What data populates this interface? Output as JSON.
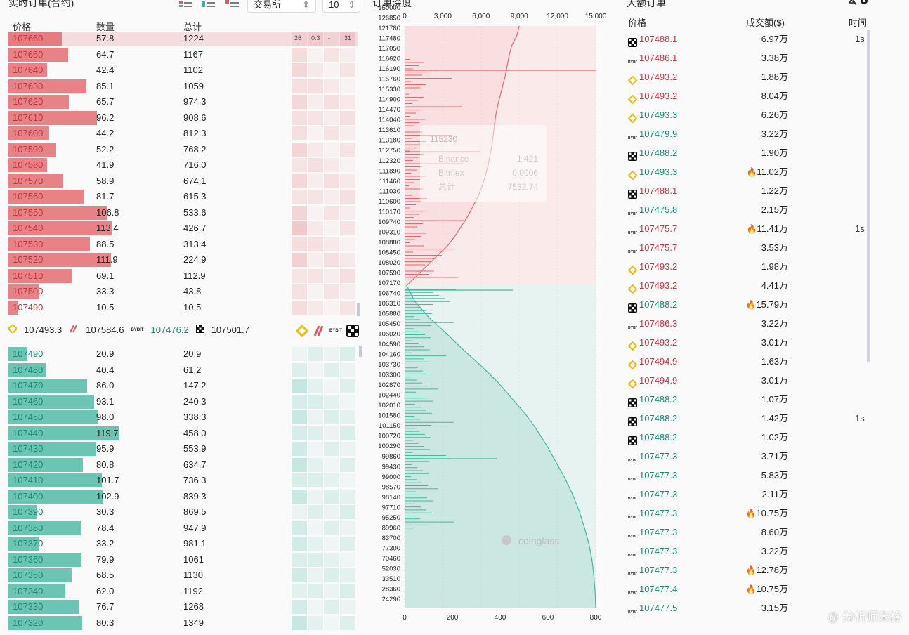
{
  "orderbook": {
    "title": "实时订单(合约)",
    "exchange_select": "交易所",
    "depth_select": "10",
    "headers": {
      "price": "价格",
      "qty": "数量",
      "total": "总计"
    },
    "heat_labels": [
      "26",
      "0.3",
      "-",
      "31"
    ],
    "asks": [
      {
        "price": "107660",
        "qty": "57.8",
        "total": "1224"
      },
      {
        "price": "107650",
        "qty": "64.7",
        "total": "1167"
      },
      {
        "price": "107640",
        "qty": "42.4",
        "total": "1102"
      },
      {
        "price": "107630",
        "qty": "85.1",
        "total": "1059"
      },
      {
        "price": "107620",
        "qty": "65.7",
        "total": "974.3"
      },
      {
        "price": "107610",
        "qty": "96.2",
        "total": "908.6"
      },
      {
        "price": "107600",
        "qty": "44.2",
        "total": "812.3"
      },
      {
        "price": "107590",
        "qty": "52.2",
        "total": "768.2"
      },
      {
        "price": "107580",
        "qty": "41.9",
        "total": "716.0"
      },
      {
        "price": "107570",
        "qty": "58.9",
        "total": "674.1"
      },
      {
        "price": "107560",
        "qty": "81.7",
        "total": "615.3"
      },
      {
        "price": "107550",
        "qty": "106.8",
        "total": "533.6"
      },
      {
        "price": "107540",
        "qty": "113.4",
        "total": "426.7"
      },
      {
        "price": "107530",
        "qty": "88.5",
        "total": "313.4"
      },
      {
        "price": "107520",
        "qty": "111.9",
        "total": "224.9"
      },
      {
        "price": "107510",
        "qty": "69.1",
        "total": "112.9"
      },
      {
        "price": "107500",
        "qty": "33.3",
        "total": "43.8"
      },
      {
        "price": "107490",
        "qty": "10.5",
        "total": "10.5"
      }
    ],
    "bids": [
      {
        "price": "107490",
        "qty": "20.9",
        "total": "20.9"
      },
      {
        "price": "107480",
        "qty": "40.4",
        "total": "61.2"
      },
      {
        "price": "107470",
        "qty": "86.0",
        "total": "147.2"
      },
      {
        "price": "107460",
        "qty": "93.1",
        "total": "240.3"
      },
      {
        "price": "107450",
        "qty": "98.0",
        "total": "338.3"
      },
      {
        "price": "107440",
        "qty": "119.7",
        "total": "458.0"
      },
      {
        "price": "107430",
        "qty": "95.9",
        "total": "553.9"
      },
      {
        "price": "107420",
        "qty": "80.8",
        "total": "634.7"
      },
      {
        "price": "107410",
        "qty": "101.7",
        "total": "736.3"
      },
      {
        "price": "107400",
        "qty": "102.9",
        "total": "839.3"
      },
      {
        "price": "107390",
        "qty": "30.3",
        "total": "869.5"
      },
      {
        "price": "107380",
        "qty": "78.4",
        "total": "947.9"
      },
      {
        "price": "107370",
        "qty": "33.2",
        "total": "981.1"
      },
      {
        "price": "107360",
        "qty": "79.9",
        "total": "1061"
      },
      {
        "price": "107350",
        "qty": "68.5",
        "total": "1130"
      },
      {
        "price": "107340",
        "qty": "62.0",
        "total": "1192"
      },
      {
        "price": "107330",
        "qty": "76.7",
        "total": "1268"
      },
      {
        "price": "107320",
        "qty": "80.3",
        "total": "1349"
      }
    ],
    "exchange_prices": [
      {
        "icon": "binance-icon",
        "value": "107493.3"
      },
      {
        "icon": "bitmex-icon",
        "value": "107584.6"
      },
      {
        "icon": "bybit-icon",
        "value": "107476.2"
      },
      {
        "icon": "okx-icon",
        "value": "107501.7"
      }
    ],
    "colors": {
      "ask": "#e05a60",
      "bid": "#3bb39a"
    }
  },
  "chart_data": {
    "type": "area",
    "title": "订单深度",
    "top_axis": {
      "ticks": [
        "0",
        "3,000",
        "6,000",
        "9,000",
        "12,000",
        "15,000"
      ],
      "range": [
        0,
        15000
      ]
    },
    "bottom_axis": {
      "ticks": [
        "0",
        "200",
        "400",
        "600",
        "800"
      ],
      "range": [
        0,
        800
      ]
    },
    "price_ticks": [
      "150000",
      "126850",
      "121780",
      "117480",
      "117050",
      "116620",
      "116190",
      "115760",
      "115330",
      "114900",
      "114470",
      "114040",
      "113610",
      "113180",
      "112750",
      "112320",
      "111890",
      "111460",
      "111030",
      "110600",
      "110170",
      "109740",
      "109310",
      "108880",
      "108450",
      "108020",
      "107590",
      "107170",
      "106740",
      "106310",
      "105880",
      "105450",
      "105020",
      "104590",
      "104160",
      "103730",
      "103300",
      "102870",
      "102440",
      "102010",
      "101580",
      "101150",
      "100720",
      "100290",
      "99860",
      "99430",
      "99000",
      "98570",
      "98140",
      "97710",
      "95250",
      "89960",
      "83700",
      "77300",
      "70460",
      "52030",
      "33510",
      "28360",
      "24290"
    ],
    "tooltip": {
      "price": "115230",
      "rows": [
        {
          "name": "Binance",
          "value": "1.421"
        },
        {
          "name": "Bitmex",
          "value": "0.0006"
        },
        {
          "name": "总计",
          "value": "7532.74"
        }
      ]
    },
    "ask_cumulative": [
      200,
      1000,
      1800,
      2600,
      3400,
      4000,
      4500,
      5000,
      5400,
      5800,
      6100,
      6350,
      6550,
      6700,
      6850,
      6950,
      7050,
      7150,
      7300,
      7500,
      7700,
      7900,
      8050,
      8200,
      8400,
      8800,
      9000
    ],
    "bid_cumulative": [
      150,
      800,
      1900,
      3300,
      4600,
      6000,
      7300,
      8400,
      9500,
      10400,
      11200,
      11900,
      12600,
      13200,
      13700,
      14100,
      14450,
      14700,
      14850,
      14950,
      15000
    ],
    "watermark": "coinglass",
    "colors": {
      "ask": "#e9646c",
      "bid": "#48b59e"
    }
  },
  "large_orders": {
    "title": "大额订单",
    "headers": {
      "price": "价格",
      "amount": "成交额($)",
      "time": "时间"
    },
    "rows": [
      {
        "ex": "okx",
        "price": "107488.1",
        "side": "dn",
        "amount": "6.97万",
        "hot": false,
        "time": "1s"
      },
      {
        "ex": "bybit",
        "price": "107486.1",
        "side": "dn",
        "amount": "3.38万",
        "hot": false,
        "time": ""
      },
      {
        "ex": "binance",
        "price": "107493.2",
        "side": "dn",
        "amount": "1.88万",
        "hot": false,
        "time": ""
      },
      {
        "ex": "binance",
        "price": "107493.2",
        "side": "dn",
        "amount": "8.04万",
        "hot": false,
        "time": ""
      },
      {
        "ex": "binance",
        "price": "107493.3",
        "side": "up",
        "amount": "6.26万",
        "hot": false,
        "time": ""
      },
      {
        "ex": "bybit",
        "price": "107479.9",
        "side": "up",
        "amount": "3.22万",
        "hot": false,
        "time": ""
      },
      {
        "ex": "okx",
        "price": "107488.2",
        "side": "up",
        "amount": "1.90万",
        "hot": false,
        "time": ""
      },
      {
        "ex": "binance",
        "price": "107493.3",
        "side": "up",
        "amount": "11.02万",
        "hot": true,
        "time": ""
      },
      {
        "ex": "okx",
        "price": "107488.1",
        "side": "dn",
        "amount": "1.22万",
        "hot": false,
        "time": ""
      },
      {
        "ex": "bybit",
        "price": "107475.8",
        "side": "up",
        "amount": "2.15万",
        "hot": false,
        "time": ""
      },
      {
        "ex": "bybit",
        "price": "107475.7",
        "side": "dn",
        "amount": "11.41万",
        "hot": true,
        "time": "1s"
      },
      {
        "ex": "bybit",
        "price": "107475.7",
        "side": "dn",
        "amount": "3.53万",
        "hot": false,
        "time": ""
      },
      {
        "ex": "binance",
        "price": "107493.2",
        "side": "dn",
        "amount": "1.98万",
        "hot": false,
        "time": ""
      },
      {
        "ex": "binance",
        "price": "107493.2",
        "side": "dn",
        "amount": "4.41万",
        "hot": false,
        "time": ""
      },
      {
        "ex": "okx",
        "price": "107488.2",
        "side": "up",
        "amount": "15.79万",
        "hot": true,
        "time": ""
      },
      {
        "ex": "bybit",
        "price": "107486.3",
        "side": "dn",
        "amount": "3.22万",
        "hot": false,
        "time": ""
      },
      {
        "ex": "binance",
        "price": "107493.2",
        "side": "dn",
        "amount": "3.01万",
        "hot": false,
        "time": ""
      },
      {
        "ex": "binance",
        "price": "107494.9",
        "side": "dn",
        "amount": "1.63万",
        "hot": false,
        "time": ""
      },
      {
        "ex": "binance",
        "price": "107494.9",
        "side": "dn",
        "amount": "3.01万",
        "hot": false,
        "time": ""
      },
      {
        "ex": "okx",
        "price": "107488.2",
        "side": "up",
        "amount": "1.07万",
        "hot": false,
        "time": ""
      },
      {
        "ex": "okx",
        "price": "107488.2",
        "side": "up",
        "amount": "1.42万",
        "hot": false,
        "time": "1s"
      },
      {
        "ex": "okx",
        "price": "107488.2",
        "side": "up",
        "amount": "1.02万",
        "hot": false,
        "time": ""
      },
      {
        "ex": "bybit",
        "price": "107477.3",
        "side": "up",
        "amount": "3.71万",
        "hot": false,
        "time": ""
      },
      {
        "ex": "bybit",
        "price": "107477.3",
        "side": "up",
        "amount": "5.83万",
        "hot": false,
        "time": ""
      },
      {
        "ex": "bybit",
        "price": "107477.3",
        "side": "up",
        "amount": "2.11万",
        "hot": false,
        "time": ""
      },
      {
        "ex": "bybit",
        "price": "107477.3",
        "side": "up",
        "amount": "10.75万",
        "hot": true,
        "time": ""
      },
      {
        "ex": "bybit",
        "price": "107477.3",
        "side": "up",
        "amount": "8.60万",
        "hot": false,
        "time": ""
      },
      {
        "ex": "bybit",
        "price": "107477.3",
        "side": "up",
        "amount": "3.22万",
        "hot": false,
        "time": ""
      },
      {
        "ex": "bybit",
        "price": "107477.3",
        "side": "up",
        "amount": "12.78万",
        "hot": true,
        "time": ""
      },
      {
        "ex": "bybit",
        "price": "107477.4",
        "side": "up",
        "amount": "10.75万",
        "hot": true,
        "time": ""
      },
      {
        "ex": "bybit",
        "price": "107477.5",
        "side": "up",
        "amount": "3.15万",
        "hot": false,
        "time": ""
      }
    ]
  },
  "watermark": "@ 分析师米格"
}
